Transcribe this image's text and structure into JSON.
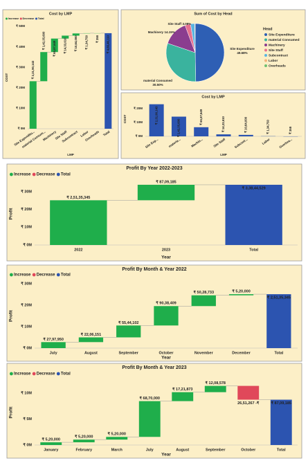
{
  "chart_data": [
    {
      "type": "waterfall",
      "title": "Cost by LMP",
      "categories": [
        "Site Expenditu...",
        "material Consum...",
        "Machinery",
        "Site Staff",
        "Subcontract",
        "Labor",
        "Overheads",
        "Total"
      ],
      "values": [
        23190143,
        14235600,
        6587649,
        1433610,
        1064000,
        134750,
        358,
        46646110
      ],
      "value_labels": [
        "₹ 2,31,90,143",
        "₹ 1,42,35,600",
        "₹ 65,87,649",
        "₹ 14,33,610",
        "₹ 10,64,000",
        "₹ 1,34,750",
        "₹ 358",
        "₹ 4,66,46,110"
      ],
      "legend": [
        {
          "name": "Increase",
          "color": "#1fae4b"
        },
        {
          "name": "Decrease",
          "color": "#e0485a"
        },
        {
          "name": "Total",
          "color": "#2c54b0"
        }
      ],
      "ylim": [
        0,
        50000000
      ],
      "yticks": [
        {
          "value": 0,
          "label": "₹ 0M"
        },
        {
          "value": 10000000,
          "label": "₹ 10M"
        },
        {
          "value": 20000000,
          "label": "₹ 20M"
        },
        {
          "value": 30000000,
          "label": "₹ 30M"
        },
        {
          "value": 40000000,
          "label": "₹ 40M"
        },
        {
          "value": 50000000,
          "label": "₹ 50M"
        }
      ],
      "y_label": "COST",
      "x_label": "LMP"
    },
    {
      "type": "pie",
      "title": "Sum of Cost by Head",
      "legend_title": "Head",
      "categories": [
        "Site Expenditure",
        "material Consumed",
        "Machinery",
        "Site  Staff",
        "Subcontract",
        "Labor",
        "Overheads"
      ],
      "values": [
        49.68,
        30.5,
        14.15,
        3.08,
        2.28,
        0.29,
        0.0
      ],
      "value_labels": [
        "49.68%",
        "30.50%",
        "14.15%",
        "3.08%",
        null,
        null,
        null
      ],
      "colors": [
        "#2e5fb4",
        "#3ab39e",
        "#8b3d8f",
        "#e8728f",
        "#5bb5e0",
        "#f3b37a",
        "#6fc070"
      ]
    },
    {
      "type": "bar",
      "title": "Cost by LMP",
      "categories": [
        "Site Exp...",
        "materia...",
        "Machin...",
        "Site Staff",
        "Subcont...",
        "Labor",
        "Overhea..."
      ],
      "values": [
        23190143,
        14235600,
        6587649,
        1433610,
        1064000,
        134750,
        358
      ],
      "value_labels": [
        "₹ 2,31,90,143",
        "₹ 1,42,35,600",
        "₹ 65,87,649",
        "₹ 14,33,610",
        "₹ 10,64,000",
        "₹ 1,34,750",
        "₹ 358"
      ],
      "color": "#2c54b0",
      "ylim": [
        0,
        25000000
      ],
      "yticks": [
        {
          "value": 0,
          "label": "₹ 0M"
        },
        {
          "value": 10000000,
          "label": "₹ 10M"
        },
        {
          "value": 20000000,
          "label": "₹ 20M"
        }
      ],
      "y_label": "COST",
      "x_label": "LMP"
    },
    {
      "type": "waterfall",
      "title": "Profit By Year 2022-2023",
      "categories": [
        "2022",
        "2023",
        "Total"
      ],
      "values": [
        25135345,
        8709185,
        33844529
      ],
      "value_labels": [
        "₹ 2,51,35,345",
        "₹ 87,09,185",
        "₹ 3,38,44,529"
      ],
      "legend": [
        {
          "name": "Increase",
          "color": "#1fae4b"
        },
        {
          "name": "Decrease",
          "color": "#e0485a"
        },
        {
          "name": "Total",
          "color": "#2c54b0"
        }
      ],
      "ylim": [
        0,
        35000000
      ],
      "yticks": [
        {
          "value": 0,
          "label": "₹ 0M"
        },
        {
          "value": 10000000,
          "label": "₹ 10M"
        },
        {
          "value": 20000000,
          "label": "₹ 20M"
        },
        {
          "value": 30000000,
          "label": "₹ 30M"
        }
      ],
      "y_label": "Profit",
      "x_label": "Year"
    },
    {
      "type": "waterfall",
      "title": "Profit By Month & Year 2022",
      "categories": [
        "July",
        "August",
        "September",
        "October",
        "November",
        "December",
        "Total"
      ],
      "values": [
        2797950,
        2206151,
        5544102,
        9038409,
        5028733,
        520000,
        25135345
      ],
      "value_labels": [
        "₹ 27,97,950",
        "₹ 22,06,151",
        "₹ 55,44,102",
        "₹ 90,38,409",
        "₹ 50,28,733",
        "₹ 5,20,000",
        "₹ 2,51,35,345"
      ],
      "legend": [
        {
          "name": "Increase",
          "color": "#1fae4b"
        },
        {
          "name": "Decrease",
          "color": "#e0485a"
        },
        {
          "name": "Total",
          "color": "#2c54b0"
        }
      ],
      "ylim": [
        0,
        30000000
      ],
      "yticks": [
        {
          "value": 0,
          "label": "₹ 0M"
        },
        {
          "value": 10000000,
          "label": "₹ 10M"
        },
        {
          "value": 20000000,
          "label": "₹ 20M"
        },
        {
          "value": 30000000,
          "label": "₹ 30M"
        }
      ],
      "y_label": "Profit",
      "x_label": "Year"
    },
    {
      "type": "waterfall",
      "title": "Profit By Month & Year 2023",
      "categories": [
        "January",
        "February",
        "March",
        "July",
        "August",
        "September",
        "October",
        "Total"
      ],
      "values": [
        520000,
        520000,
        520000,
        6870000,
        1721873,
        1208578,
        -2651267,
        8709185
      ],
      "value_labels": [
        "₹ 5,20,000",
        "₹ 5,20,000",
        "₹ 5,20,000",
        "₹ 68,70,000",
        "₹ 17,21,873",
        "₹ 12,08,578",
        "26,51,267 -₹",
        "₹ 87,09,185"
      ],
      "legend": [
        {
          "name": "Increase",
          "color": "#1fae4b"
        },
        {
          "name": "Decrease",
          "color": "#e0485a"
        },
        {
          "name": "Total",
          "color": "#2c54b0"
        }
      ],
      "ylim": [
        0,
        12500000
      ],
      "yticks": [
        {
          "value": 0,
          "label": "₹ 0M"
        },
        {
          "value": 5000000,
          "label": "₹ 5M"
        },
        {
          "value": 10000000,
          "label": "₹ 10M"
        }
      ],
      "y_label": "Profit",
      "x_label": "Year"
    }
  ]
}
